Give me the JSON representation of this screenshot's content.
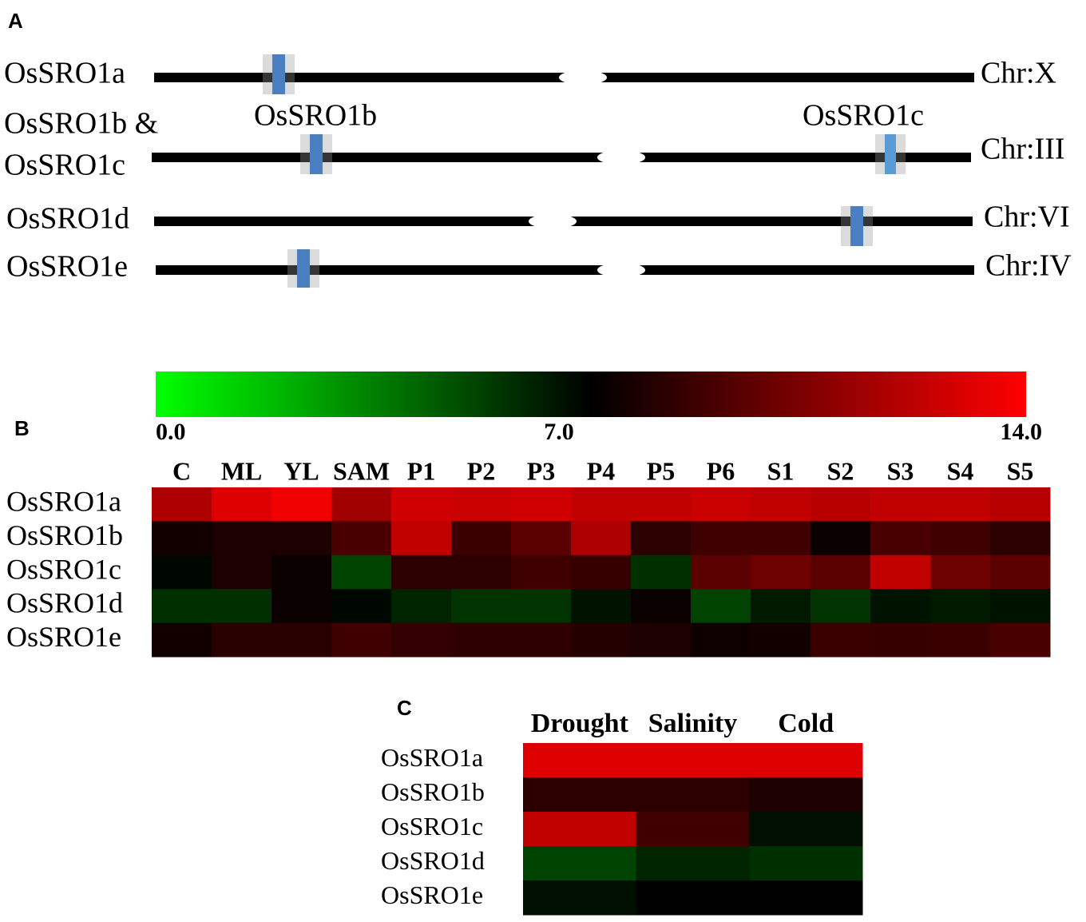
{
  "diagram": {
    "label": "A",
    "rows": [
      {
        "name": [
          "OsSRO1a"
        ],
        "chromosome": "Chr:X"
      },
      {
        "name": [
          "OsSRO1b &",
          "OsSRO1c"
        ],
        "chromosome": "Chr:III",
        "genes": [
          "OsSRO1b",
          "OsSRO1c"
        ]
      },
      {
        "name": [
          "OsSRO1d"
        ],
        "chromosome": "Chr:VI"
      },
      {
        "name": [
          "OsSRO1e"
        ],
        "chromosome": "Chr:IV"
      }
    ]
  },
  "chart_data": [
    {
      "type": "heatmap",
      "label": "B",
      "colors": [
        "#00ff00",
        "#000000",
        "#ff0000"
      ],
      "zlim": [
        0,
        14
      ],
      "zticks": [
        {
          "value": 0,
          "label": "0.0"
        },
        {
          "value": 7,
          "label": "7.0"
        },
        {
          "value": 14,
          "label": "14.0"
        }
      ],
      "colorbar": true,
      "categories": [
        "C",
        "ML",
        "YL",
        "SAM",
        "P1",
        "P2",
        "P3",
        "P4",
        "P5",
        "P6",
        "S1",
        "S2",
        "S3",
        "S4",
        "S5"
      ],
      "series": [
        {
          "name": "OsSRO1a",
          "values": [
            11.8,
            13.1,
            13.6,
            11.4,
            12.7,
            12.5,
            12.7,
            12.3,
            12.3,
            12.5,
            12.3,
            12.0,
            12.3,
            12.3,
            12.0
          ]
        },
        {
          "name": "OsSRO1b",
          "values": [
            7.5,
            7.8,
            7.8,
            9.0,
            12.3,
            8.6,
            9.5,
            11.8,
            8.2,
            8.7,
            8.7,
            7.3,
            9.0,
            8.7,
            8.2
          ]
        },
        {
          "name": "OsSRO1c",
          "values": [
            6.8,
            7.8,
            7.3,
            5.2,
            8.2,
            8.2,
            8.7,
            8.5,
            5.7,
            9.5,
            10.0,
            9.5,
            12.3,
            10.0,
            9.5
          ]
        },
        {
          "name": "OsSRO1d",
          "values": [
            5.7,
            5.7,
            7.3,
            6.8,
            6.0,
            5.6,
            5.6,
            6.5,
            7.3,
            5.2,
            6.3,
            5.6,
            6.5,
            6.3,
            6.5
          ]
        },
        {
          "name": "OsSRO1e",
          "values": [
            7.5,
            8.1,
            8.1,
            8.7,
            8.4,
            8.3,
            8.3,
            8.0,
            7.8,
            7.4,
            7.5,
            8.6,
            8.5,
            8.6,
            9.0
          ]
        }
      ]
    },
    {
      "type": "heatmap",
      "label": "C",
      "colors": [
        "#00ff00",
        "#000000",
        "#ff0000"
      ],
      "zlim": [
        0,
        14
      ],
      "categories": [
        "Drought",
        "Salinity",
        "Cold"
      ],
      "series": [
        {
          "name": "OsSRO1a",
          "values": [
            13.1,
            13.1,
            13.1
          ]
        },
        {
          "name": "OsSRO1b",
          "values": [
            8.2,
            8.2,
            7.8
          ]
        },
        {
          "name": "OsSRO1c",
          "values": [
            12.3,
            8.7,
            6.6
          ]
        },
        {
          "name": "OsSRO1d",
          "values": [
            5.2,
            6.0,
            5.7
          ]
        },
        {
          "name": "OsSRO1e",
          "values": [
            6.6,
            7.0,
            7.0
          ]
        }
      ]
    }
  ]
}
